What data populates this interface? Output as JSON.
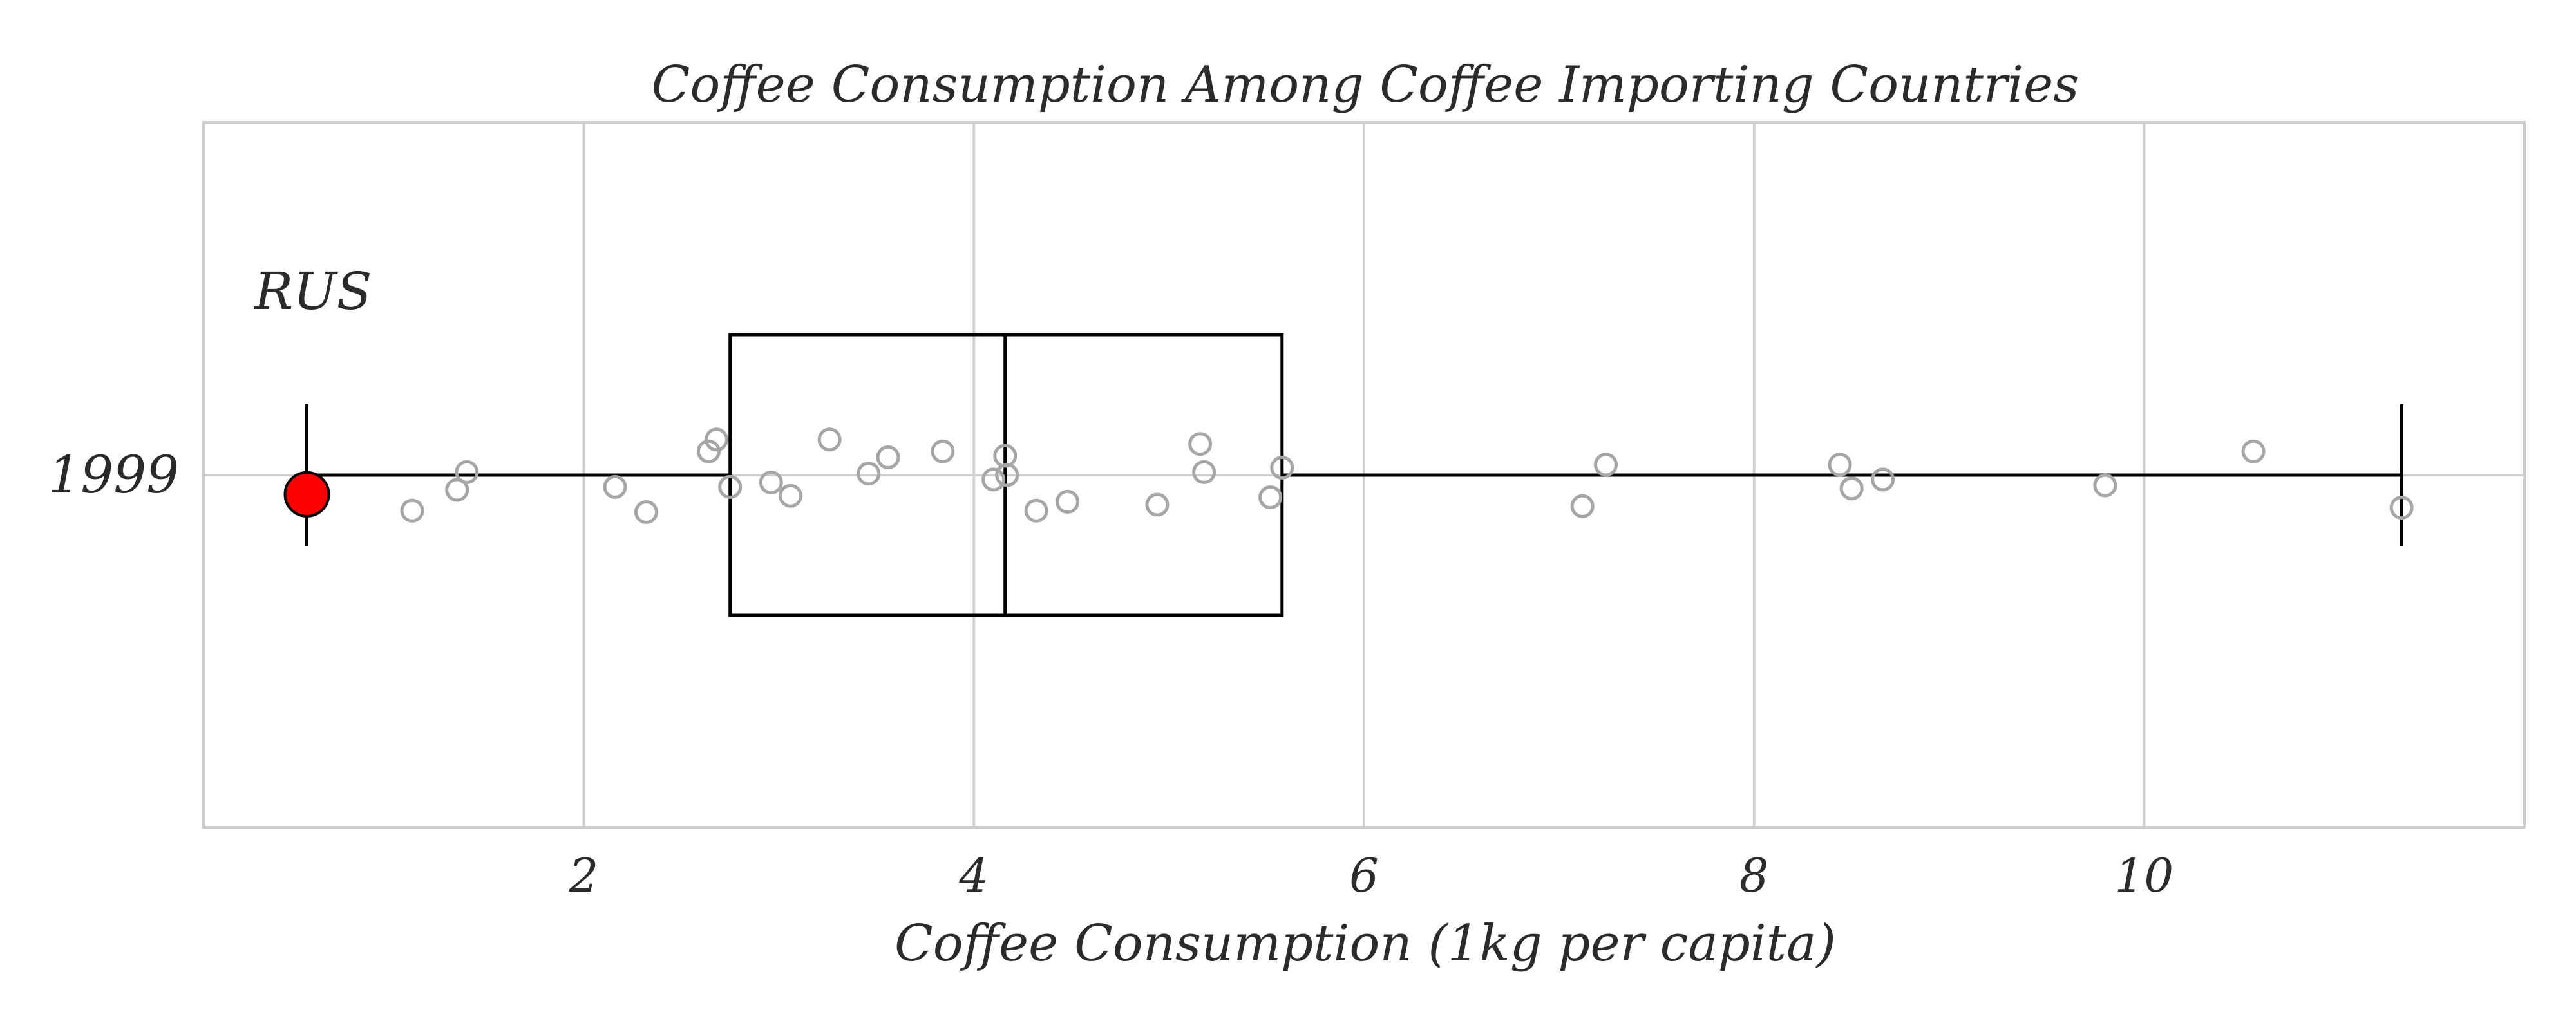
{
  "chart_data": {
    "type": "box",
    "title": "Coffee Consumption Among Coffee Importing Countries",
    "xlabel": "Coffee Consumption (1kg per capita)",
    "ylabel": "",
    "xlim": [
      0.05,
      11.95
    ],
    "x_ticks": [
      2,
      4,
      6,
      8,
      10
    ],
    "x_tick_labels": [
      "2",
      "4",
      "6",
      "8",
      "10"
    ],
    "categories": [
      "1999"
    ],
    "grid": true,
    "box": {
      "whisker_low": 0.58,
      "q1": 2.75,
      "median": 4.16,
      "q3": 5.58,
      "whisker_high": 11.32
    },
    "points": [
      {
        "x": 1.12,
        "jitter": -0.24
      },
      {
        "x": 1.35,
        "jitter": -0.1
      },
      {
        "x": 1.4,
        "jitter": 0.02
      },
      {
        "x": 2.16,
        "jitter": -0.08
      },
      {
        "x": 2.32,
        "jitter": -0.25
      },
      {
        "x": 2.64,
        "jitter": 0.16
      },
      {
        "x": 2.68,
        "jitter": 0.24
      },
      {
        "x": 2.75,
        "jitter": -0.08
      },
      {
        "x": 2.96,
        "jitter": -0.05
      },
      {
        "x": 3.06,
        "jitter": -0.14
      },
      {
        "x": 3.26,
        "jitter": 0.24
      },
      {
        "x": 3.46,
        "jitter": 0.01
      },
      {
        "x": 3.56,
        "jitter": 0.12
      },
      {
        "x": 3.84,
        "jitter": 0.16
      },
      {
        "x": 4.1,
        "jitter": -0.03
      },
      {
        "x": 4.16,
        "jitter": 0.13
      },
      {
        "x": 4.17,
        "jitter": 0.0
      },
      {
        "x": 4.32,
        "jitter": -0.24
      },
      {
        "x": 4.48,
        "jitter": -0.18
      },
      {
        "x": 4.94,
        "jitter": -0.2
      },
      {
        "x": 5.16,
        "jitter": 0.21
      },
      {
        "x": 5.18,
        "jitter": 0.02
      },
      {
        "x": 5.52,
        "jitter": -0.15
      },
      {
        "x": 5.58,
        "jitter": 0.05
      },
      {
        "x": 7.12,
        "jitter": -0.21
      },
      {
        "x": 7.24,
        "jitter": 0.07
      },
      {
        "x": 8.44,
        "jitter": 0.07
      },
      {
        "x": 8.5,
        "jitter": -0.09
      },
      {
        "x": 8.66,
        "jitter": -0.03
      },
      {
        "x": 9.8,
        "jitter": -0.07
      },
      {
        "x": 10.56,
        "jitter": 0.16
      },
      {
        "x": 11.32,
        "jitter": -0.22
      }
    ],
    "highlight": {
      "label": "RUS",
      "x": 0.58,
      "jitter": -0.13,
      "color": "#ff0000"
    },
    "colors": {
      "box_line": "#000000",
      "points": "#a6a6a6",
      "grid": "#d0d0d0",
      "frame": "#cccccc"
    }
  }
}
